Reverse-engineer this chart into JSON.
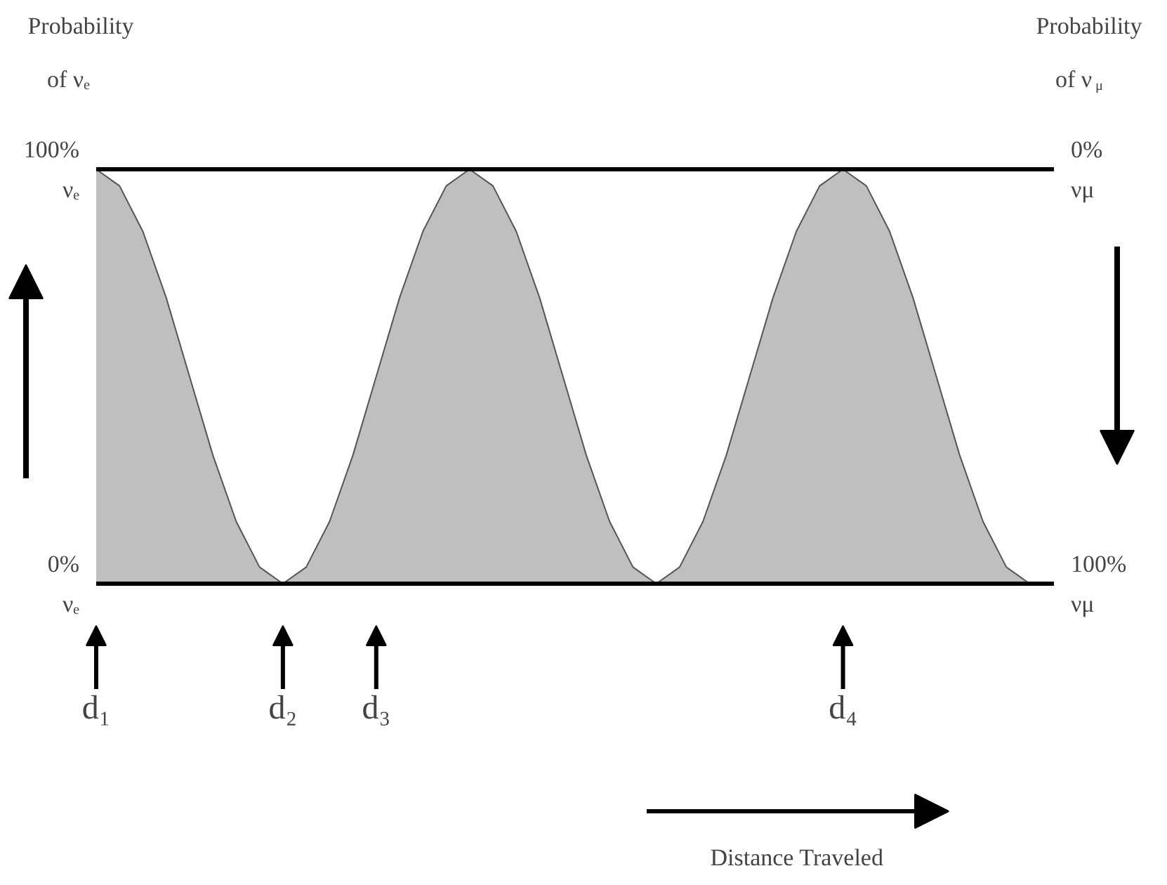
{
  "chart_data": {
    "type": "area",
    "ylabel": "Probability\nof νₑ",
    "y2label": "Probability\nof ν$_{μ}$",
    "xlabel": "Distance Traveled",
    "categories": [
      "d₁",
      null,
      null,
      null,
      null,
      null,
      null,
      null,
      "d₂",
      null,
      null,
      null,
      "d₃",
      null,
      null,
      null,
      null,
      null,
      null,
      null,
      null,
      null,
      null,
      null,
      null,
      null,
      null,
      null,
      null,
      null,
      null,
      null,
      "d₄",
      null,
      null,
      null,
      null,
      null,
      null,
      null,
      null
    ],
    "series": [
      {
        "color": "#bfbfbf",
        "values": [
          100,
          96,
          85,
          69,
          50,
          31,
          15,
          4,
          0,
          4,
          15,
          31,
          50,
          69,
          85,
          96,
          100,
          96,
          85,
          69,
          50,
          31,
          15,
          4,
          0,
          4,
          15,
          31,
          50,
          69,
          85,
          96,
          100,
          96,
          85,
          69,
          50,
          31,
          15,
          4,
          0
        ]
      }
    ],
    "ylim": [
      0,
      100
    ],
    "yticks": [
      {
        "value": 0,
        "label": "0%\nνₑ"
      },
      {
        "value": 100,
        "label": "100%\nνₑ"
      }
    ],
    "y2lim": [
      100,
      0
    ],
    "y2ticks": [
      {
        "value": 0,
        "label": "0%\nνμ"
      },
      {
        "value": 100,
        "label": "100%\nνμ"
      }
    ],
    "grid": false
  }
}
